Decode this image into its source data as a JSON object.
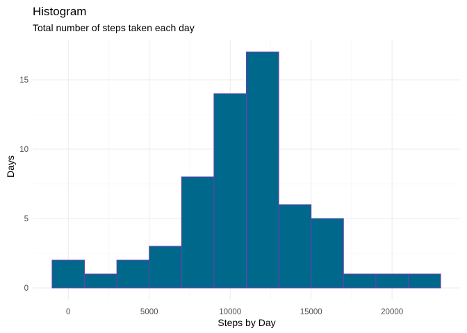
{
  "chart_data": {
    "type": "bar",
    "title": "Histogram",
    "subtitle": "Total number of steps taken each day",
    "xlabel": "Steps by Day",
    "ylabel": "Days",
    "xlim": [
      -1000,
      23000
    ],
    "ylim": [
      0,
      17
    ],
    "x_ticks": [
      0,
      5000,
      10000,
      15000,
      20000
    ],
    "y_ticks": [
      0,
      5,
      10,
      15
    ],
    "grid": true,
    "bin_width": 2000,
    "bins": [
      {
        "start": -1000,
        "end": 1000,
        "count": 2
      },
      {
        "start": 1000,
        "end": 3000,
        "count": 1
      },
      {
        "start": 3000,
        "end": 5000,
        "count": 2
      },
      {
        "start": 5000,
        "end": 7000,
        "count": 3
      },
      {
        "start": 7000,
        "end": 9000,
        "count": 8
      },
      {
        "start": 9000,
        "end": 11000,
        "count": 14
      },
      {
        "start": 11000,
        "end": 13000,
        "count": 17
      },
      {
        "start": 13000,
        "end": 15000,
        "count": 6
      },
      {
        "start": 15000,
        "end": 17000,
        "count": 5
      },
      {
        "start": 17000,
        "end": 19000,
        "count": 1
      },
      {
        "start": 19000,
        "end": 21000,
        "count": 1
      },
      {
        "start": 21000,
        "end": 23000,
        "count": 1
      }
    ],
    "colors": {
      "bar_fill": "#00688b",
      "bar_outline": "#6a3fb0",
      "grid": "#ebebeb"
    }
  }
}
